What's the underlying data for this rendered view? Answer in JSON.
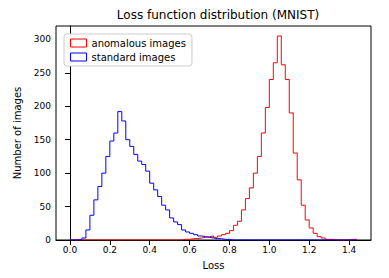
{
  "chart_data": {
    "type": "histogram",
    "title": "Loss function distribution (MNIST)",
    "x_label": "Loss",
    "y_label": "Number of images",
    "bins": [
      0.0,
      0.02,
      0.04,
      0.06,
      0.08,
      0.1,
      0.12,
      0.14,
      0.16,
      0.18,
      0.2,
      0.22,
      0.24,
      0.26,
      0.28,
      0.3,
      0.32,
      0.34,
      0.36,
      0.38,
      0.4,
      0.42,
      0.44,
      0.46,
      0.48,
      0.5,
      0.52,
      0.54,
      0.56,
      0.58,
      0.6,
      0.62,
      0.64,
      0.66,
      0.68,
      0.7,
      0.72,
      0.74,
      0.76,
      0.78,
      0.8,
      0.82,
      0.84,
      0.86,
      0.88,
      0.9,
      0.92,
      0.94,
      0.96,
      0.98,
      1.0,
      1.02,
      1.04,
      1.06,
      1.08,
      1.1,
      1.12,
      1.14,
      1.16,
      1.18,
      1.2,
      1.22,
      1.24,
      1.26,
      1.28,
      1.3,
      1.32,
      1.34,
      1.36,
      1.38,
      1.4,
      1.42,
      1.44
    ],
    "series": [
      {
        "name": "anomalous images",
        "color": "#ff0000",
        "values": [
          0,
          0,
          0,
          0,
          0,
          0,
          0,
          0,
          0,
          0,
          0,
          0,
          0,
          0,
          0,
          0,
          0,
          0,
          0,
          0,
          0,
          0,
          0,
          0,
          0,
          0,
          0,
          0,
          1,
          1,
          2,
          2,
          3,
          4,
          5,
          6,
          4,
          6,
          8,
          10,
          14,
          22,
          28,
          45,
          62,
          78,
          100,
          125,
          160,
          198,
          240,
          265,
          305,
          262,
          240,
          190,
          130,
          90,
          52,
          30,
          18,
          10,
          5,
          3,
          1,
          1,
          0,
          0,
          0,
          0,
          1,
          1
        ]
      },
      {
        "name": "standard images",
        "color": "#0000ff",
        "values": [
          0,
          0,
          1,
          3,
          15,
          37,
          60,
          80,
          100,
          125,
          148,
          160,
          192,
          178,
          150,
          140,
          128,
          118,
          113,
          103,
          85,
          75,
          65,
          52,
          45,
          33,
          27,
          23,
          15,
          12,
          10,
          8,
          6,
          5,
          4,
          3,
          2,
          2,
          1,
          1,
          0,
          0,
          0,
          0,
          0,
          0,
          0,
          0,
          0,
          0,
          0,
          0,
          0,
          0,
          0,
          0,
          0,
          0,
          0,
          0,
          0,
          0,
          0,
          0,
          0,
          0,
          0,
          0,
          0,
          0,
          0,
          0
        ]
      }
    ],
    "xlim": [
      -0.07,
      1.51
    ],
    "xticks": [
      {
        "value": 0,
        "label": "0.0"
      },
      0.2,
      0.4,
      0.6,
      0.8,
      {
        "value": 1,
        "label": "1.0"
      },
      1.2,
      1.4
    ],
    "ylim": [
      0,
      320
    ],
    "yticks": [
      0,
      50,
      100,
      150,
      200,
      250,
      300
    ],
    "legend": "upper left",
    "grid": false
  }
}
